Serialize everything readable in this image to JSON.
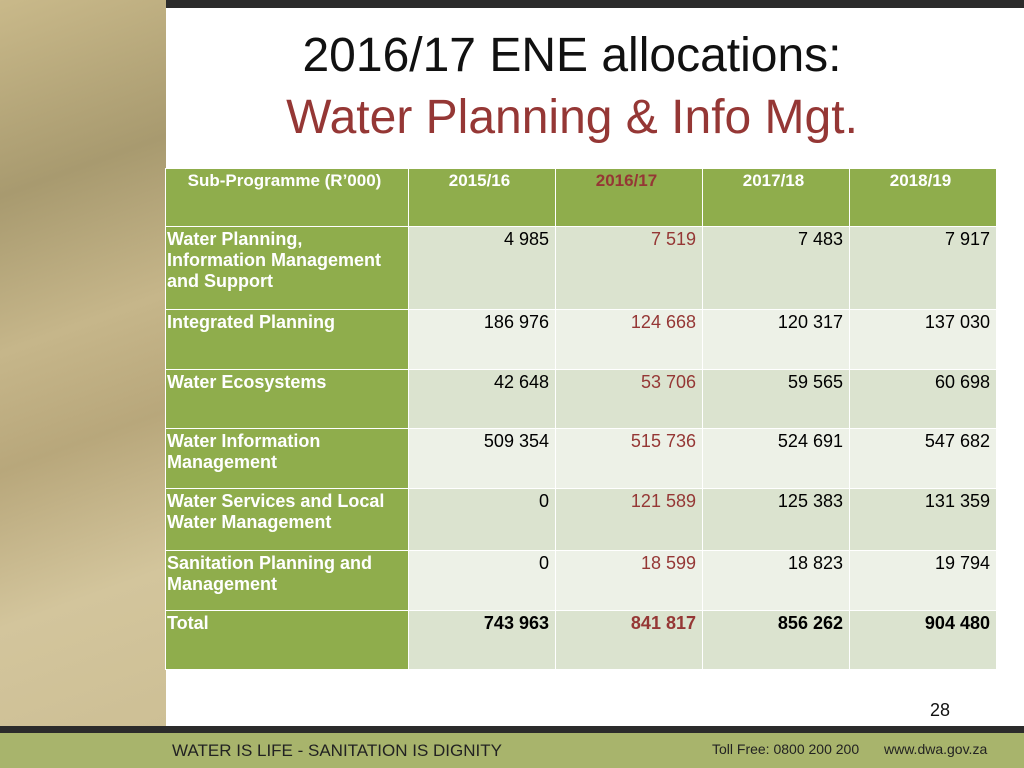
{
  "header": {
    "title": "2016/17 ENE allocations:",
    "subtitle": "Water Planning & Info Mgt."
  },
  "table": {
    "columns": [
      "Sub-Programme (R’000)",
      "2015/16",
      "2016/17",
      "2017/18",
      "2018/19"
    ],
    "rows": [
      [
        "Water Planning, Information Management and Support",
        "4 985",
        "7 519",
        "7 483",
        "7 917"
      ],
      [
        "Integrated Planning",
        "186 976",
        "124 668",
        "120 317",
        "137 030"
      ],
      [
        "Water Ecosystems",
        "42 648",
        "53 706",
        "59 565",
        "60 698"
      ],
      [
        "Water Information Management",
        "509 354",
        "515 736",
        "524 691",
        "547 682"
      ],
      [
        "Water Services and Local Water Management",
        "0",
        "121 589",
        "125 383",
        "131 359"
      ],
      [
        "Sanitation Planning and Management",
        "0",
        "18 599",
        "18 823",
        "19 794"
      ],
      [
        "Total",
        "743 963",
        "841 817",
        "856 262",
        "904 480"
      ]
    ]
  },
  "page_number": "28",
  "footer": {
    "slogan": "WATER IS LIFE - SANITATION IS DIGNITY",
    "toll_free": "Toll Free: 0800 200 200",
    "website": "www.dwa.gov.za"
  }
}
